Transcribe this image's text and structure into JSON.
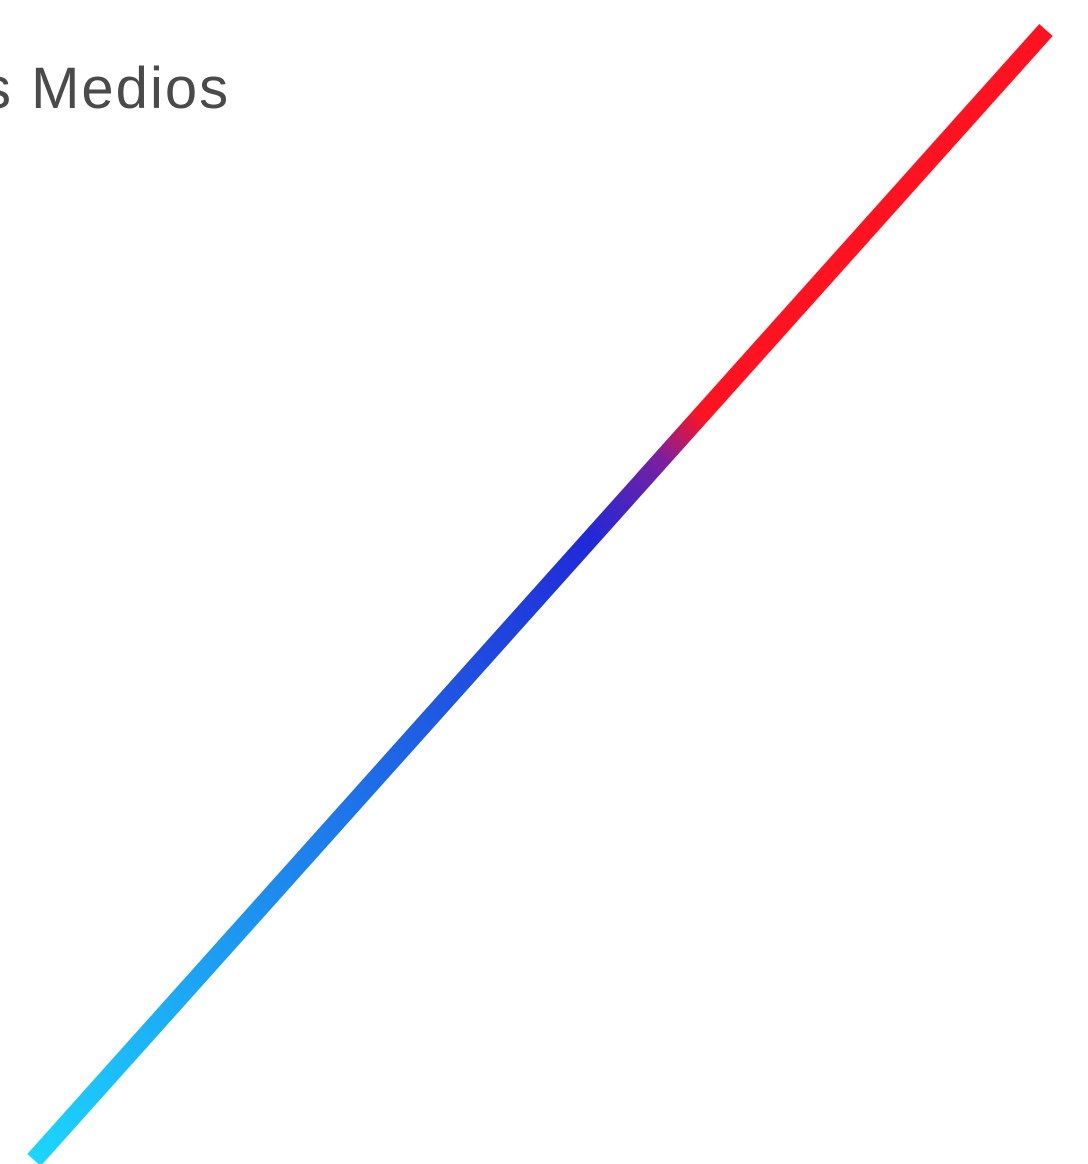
{
  "heading": {
    "text": "s Medios"
  },
  "decoration": {
    "icon": "diagonal-gradient-line",
    "colors": {
      "start": "#1bd6ff",
      "middle": "#2029d8",
      "end": "#ff1321"
    }
  }
}
